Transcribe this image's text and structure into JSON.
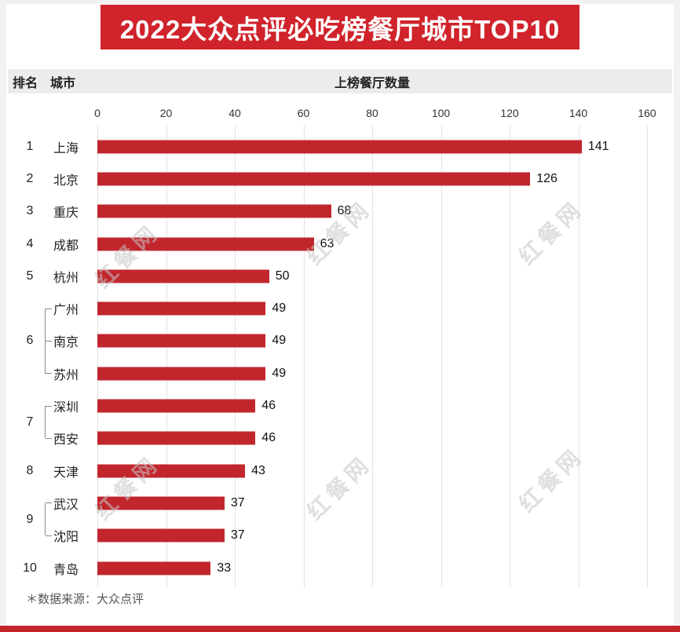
{
  "title": "2022大众点评必吃榜餐厅城市TOP10",
  "colors": {
    "accent": "#c2262d",
    "banner": "#d0232b",
    "header_bg": "#ececec",
    "grid": "#e2e2e2",
    "watermark": "#c6c6c6"
  },
  "header": {
    "rank": "排名",
    "city": "城市",
    "value_title": "上榜餐厅数量"
  },
  "footer": {
    "source": "＊数据来源：大众点评"
  },
  "watermark": {
    "text": "红餐网"
  },
  "chart_data": {
    "type": "bar",
    "orientation": "horizontal",
    "title": "2022大众点评必吃榜餐厅城市TOP10",
    "xlabel": "上榜餐厅数量",
    "ylabel": "城市",
    "xlim": [
      0,
      160
    ],
    "xticks": [
      0,
      20,
      40,
      60,
      80,
      100,
      120,
      140,
      160
    ],
    "grid": true,
    "groups": [
      {
        "rank": "1",
        "cities": [
          {
            "name": "上海",
            "value": 141
          }
        ]
      },
      {
        "rank": "2",
        "cities": [
          {
            "name": "北京",
            "value": 126
          }
        ]
      },
      {
        "rank": "3",
        "cities": [
          {
            "name": "重庆",
            "value": 68
          }
        ]
      },
      {
        "rank": "4",
        "cities": [
          {
            "name": "成都",
            "value": 63
          }
        ]
      },
      {
        "rank": "5",
        "cities": [
          {
            "name": "杭州",
            "value": 50
          }
        ]
      },
      {
        "rank": "6",
        "cities": [
          {
            "name": "广州",
            "value": 49
          },
          {
            "name": "南京",
            "value": 49
          },
          {
            "name": "苏州",
            "value": 49
          }
        ]
      },
      {
        "rank": "7",
        "cities": [
          {
            "name": "深圳",
            "value": 46
          },
          {
            "name": "西安",
            "value": 46
          }
        ]
      },
      {
        "rank": "8",
        "cities": [
          {
            "name": "天津",
            "value": 43
          }
        ]
      },
      {
        "rank": "9",
        "cities": [
          {
            "name": "武汉",
            "value": 37
          },
          {
            "name": "沈阳",
            "value": 37
          }
        ]
      },
      {
        "rank": "10",
        "cities": [
          {
            "name": "青岛",
            "value": 33
          }
        ]
      }
    ]
  }
}
